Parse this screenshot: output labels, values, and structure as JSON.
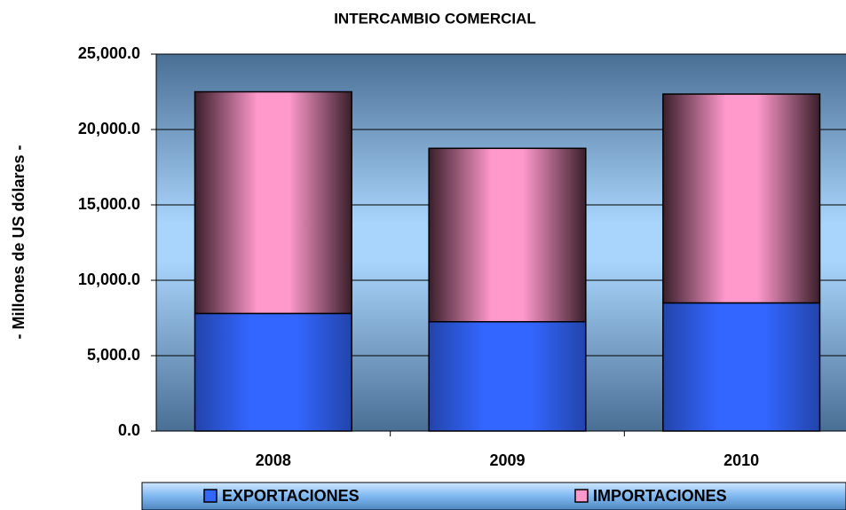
{
  "chart_data": {
    "type": "stacked_bar",
    "title": "INTERCAMBIO COMERCIAL",
    "y_label": "- Millones de US dólares -",
    "categories": [
      "2008",
      "2009",
      "2010"
    ],
    "series": [
      {
        "name": "EXPORTACIONES",
        "color": "#3366ff",
        "values": [
          7800,
          7250,
          8500
        ]
      },
      {
        "name": "IMPORTACIONES",
        "color": "#ff99cc",
        "values": [
          14700,
          11500,
          13850
        ]
      }
    ],
    "ylim": [
      0,
      25000
    ],
    "yticks": [
      {
        "value": 0,
        "label": "0.0"
      },
      {
        "value": 5000,
        "label": "5,000.0"
      },
      {
        "value": 10000,
        "label": "10,000.0"
      },
      {
        "value": 15000,
        "label": "15,000.0"
      },
      {
        "value": 20000,
        "label": "20,000.0"
      },
      {
        "value": 25000,
        "label": "25,000.0"
      }
    ],
    "grid": true
  }
}
